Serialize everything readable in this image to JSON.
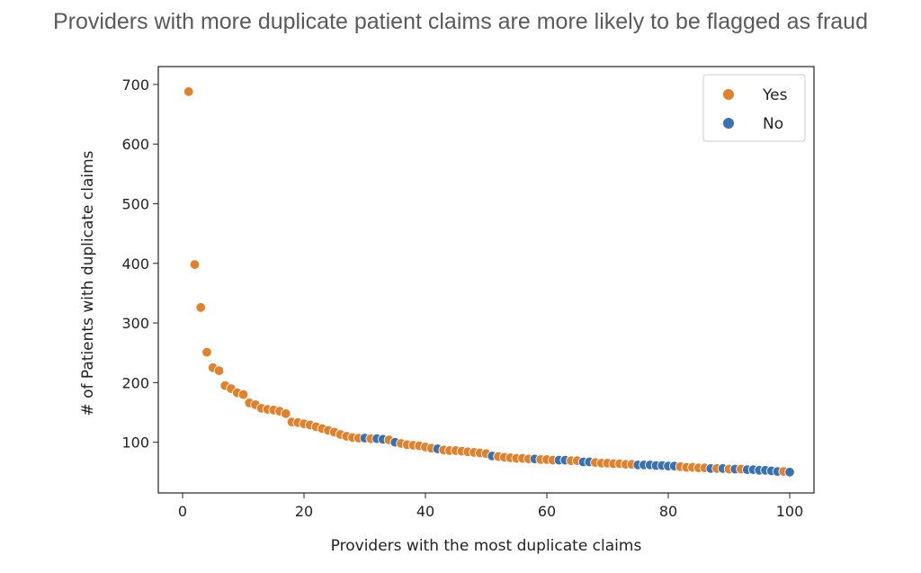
{
  "page": {
    "title": "Providers with more duplicate patient claims are more likely to be flagged as fraud"
  },
  "colors": {
    "yes": "#e1812c",
    "no": "#3a72b0",
    "axis": "#222222"
  },
  "chart_data": {
    "type": "scatter",
    "title": "",
    "xlabel": "Providers with the most duplicate claims",
    "ylabel": "# of Patients with duplicate claims",
    "xlim": [
      -4,
      104
    ],
    "ylim": [
      15,
      730
    ],
    "xticks": [
      0,
      20,
      40,
      60,
      80,
      100
    ],
    "yticks": [
      100,
      200,
      300,
      400,
      500,
      600,
      700
    ],
    "legend": {
      "placement": "top-right",
      "entries": [
        "Yes",
        "No"
      ]
    },
    "grid": false,
    "x": [
      1,
      2,
      3,
      4,
      5,
      6,
      7,
      8,
      9,
      10,
      11,
      12,
      13,
      14,
      15,
      16,
      17,
      18,
      19,
      20,
      21,
      22,
      23,
      24,
      25,
      26,
      27,
      28,
      29,
      30,
      31,
      32,
      33,
      34,
      35,
      36,
      37,
      38,
      39,
      40,
      41,
      42,
      43,
      44,
      45,
      46,
      47,
      48,
      49,
      50,
      51,
      52,
      53,
      54,
      55,
      56,
      57,
      58,
      59,
      60,
      61,
      62,
      63,
      64,
      65,
      66,
      67,
      68,
      69,
      70,
      71,
      72,
      73,
      74,
      75,
      76,
      77,
      78,
      79,
      80,
      81,
      82,
      83,
      84,
      85,
      86,
      87,
      88,
      89,
      90,
      91,
      92,
      93,
      94,
      95,
      96,
      97,
      98,
      99,
      100
    ],
    "y": [
      688,
      398,
      326,
      251,
      225,
      220,
      195,
      190,
      183,
      180,
      166,
      163,
      157,
      155,
      154,
      152,
      148,
      134,
      133,
      131,
      129,
      126,
      123,
      120,
      117,
      113,
      110,
      108,
      107,
      107,
      106,
      106,
      105,
      104,
      100,
      98,
      96,
      95,
      94,
      92,
      90,
      89,
      87,
      86,
      86,
      85,
      84,
      83,
      82,
      81,
      77,
      76,
      75,
      74,
      73,
      73,
      72,
      72,
      71,
      71,
      70,
      70,
      70,
      69,
      69,
      67,
      67,
      66,
      65,
      65,
      64,
      64,
      63,
      63,
      62,
      62,
      62,
      61,
      61,
      60,
      60,
      59,
      58,
      58,
      57,
      57,
      56,
      56,
      56,
      55,
      55,
      55,
      54,
      54,
      53,
      53,
      52,
      51,
      51,
      50
    ],
    "fraud": [
      "Yes",
      "Yes",
      "Yes",
      "Yes",
      "Yes",
      "Yes",
      "Yes",
      "Yes",
      "Yes",
      "Yes",
      "Yes",
      "Yes",
      "Yes",
      "Yes",
      "Yes",
      "Yes",
      "Yes",
      "Yes",
      "Yes",
      "Yes",
      "Yes",
      "Yes",
      "Yes",
      "Yes",
      "Yes",
      "Yes",
      "Yes",
      "Yes",
      "Yes",
      "No",
      "Yes",
      "No",
      "No",
      "Yes",
      "No",
      "Yes",
      "Yes",
      "Yes",
      "Yes",
      "Yes",
      "Yes",
      "No",
      "Yes",
      "Yes",
      "Yes",
      "Yes",
      "Yes",
      "Yes",
      "Yes",
      "Yes",
      "No",
      "Yes",
      "Yes",
      "Yes",
      "Yes",
      "Yes",
      "Yes",
      "No",
      "Yes",
      "Yes",
      "Yes",
      "No",
      "No",
      "Yes",
      "Yes",
      "No",
      "No",
      "Yes",
      "Yes",
      "Yes",
      "Yes",
      "Yes",
      "Yes",
      "Yes",
      "No",
      "No",
      "No",
      "No",
      "No",
      "No",
      "No",
      "Yes",
      "Yes",
      "Yes",
      "Yes",
      "Yes",
      "No",
      "Yes",
      "No",
      "Yes",
      "No",
      "Yes",
      "No",
      "No",
      "No",
      "No",
      "No",
      "No",
      "Yes",
      "No"
    ]
  }
}
